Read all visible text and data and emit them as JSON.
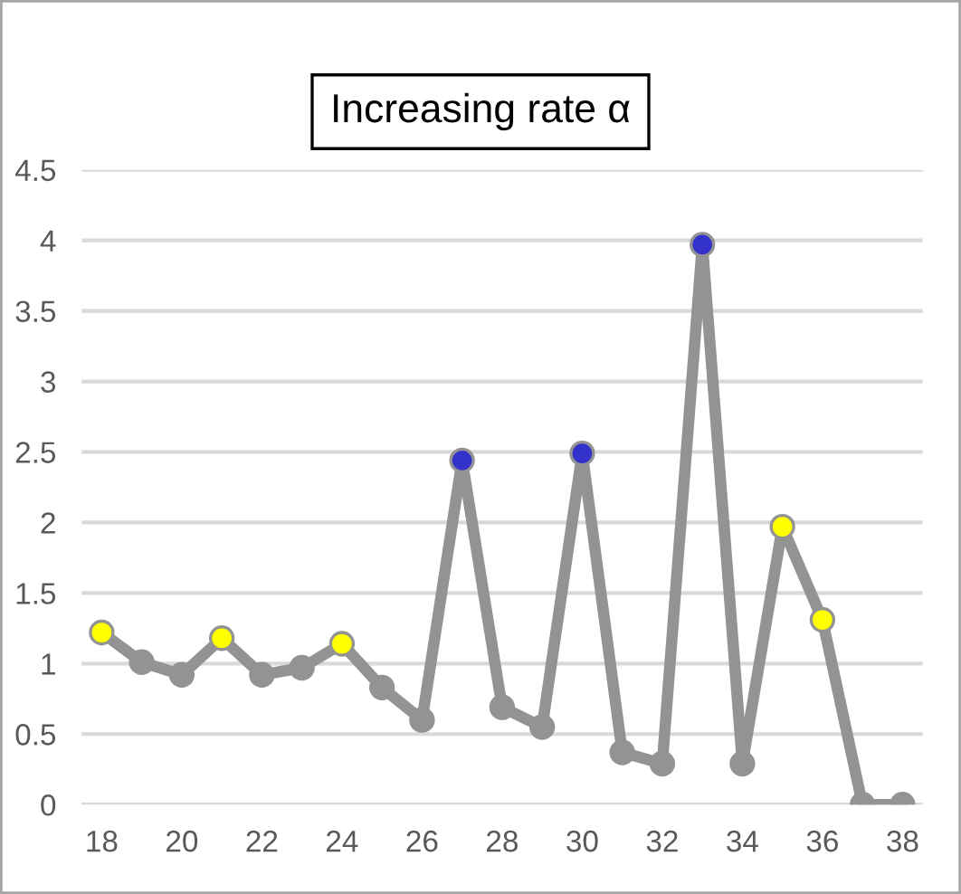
{
  "chart_data": {
    "type": "line",
    "title": "Increasing rate α",
    "x": [
      18,
      19,
      20,
      21,
      22,
      23,
      24,
      25,
      26,
      27,
      28,
      29,
      30,
      31,
      32,
      33,
      34,
      35,
      36,
      37,
      38
    ],
    "series": [
      {
        "color": "#939393",
        "values": [
          1.22,
          1.01,
          0.92,
          1.18,
          0.92,
          0.97,
          1.14,
          0.83,
          0.6,
          2.44,
          0.69,
          0.55,
          2.49,
          0.37,
          0.29,
          3.97,
          0.29,
          1.97,
          1.31,
          0,
          0
        ],
        "colors": [
          "#ffff00",
          "#939393",
          "#939393",
          "#ffff00",
          "#939393",
          "#939393",
          "#ffff00",
          "#939393",
          "#939393",
          "#3333cc",
          "#939393",
          "#939393",
          "#3333cc",
          "#939393",
          "#939393",
          "#3333cc",
          "#939393",
          "#ffff00",
          "#ffff00",
          "#939393",
          "#939393"
        ]
      }
    ],
    "xlim": [
      17.5,
      38.5
    ],
    "xticks": [
      18,
      20,
      22,
      24,
      26,
      28,
      30,
      32,
      34,
      36,
      38
    ],
    "ylim": [
      0,
      4.5
    ],
    "yticks": [
      0,
      0.5,
      1,
      1.5,
      2,
      2.5,
      3,
      3.5,
      4,
      4.5
    ],
    "grid": "y",
    "marker": "circle",
    "line_style": "solid",
    "legend": false
  }
}
